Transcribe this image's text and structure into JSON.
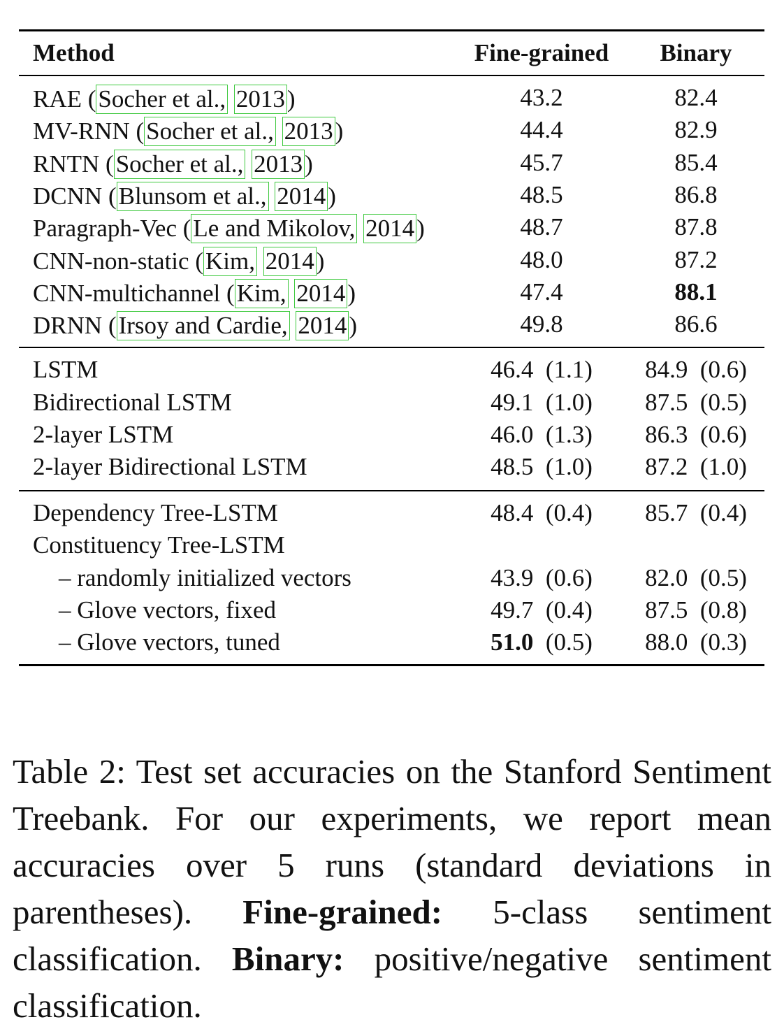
{
  "table": {
    "headers": {
      "method": "Method",
      "fine": "Fine-grained",
      "binary": "Binary"
    },
    "group1": [
      {
        "name": "RAE",
        "cite_author": "Socher et al.,",
        "cite_year": "2013",
        "fine": "43.2",
        "binary": "82.4"
      },
      {
        "name": "MV-RNN",
        "cite_author": "Socher et al.,",
        "cite_year": "2013",
        "fine": "44.4",
        "binary": "82.9"
      },
      {
        "name": "RNTN",
        "cite_author": "Socher et al.,",
        "cite_year": "2013",
        "fine": "45.7",
        "binary": "85.4"
      },
      {
        "name": "DCNN",
        "cite_author": "Blunsom et al.,",
        "cite_year": "2014",
        "fine": "48.5",
        "binary": "86.8"
      },
      {
        "name": "Paragraph-Vec",
        "cite_author": "Le and Mikolov,",
        "cite_year": "2014",
        "fine": "48.7",
        "binary": "87.8"
      },
      {
        "name": "CNN-non-static",
        "cite_author": "Kim,",
        "cite_year": "2014",
        "fine": "48.0",
        "binary": "87.2"
      },
      {
        "name": "CNN-multichannel",
        "cite_author": "Kim,",
        "cite_year": "2014",
        "fine": "47.4",
        "binary": "88.1"
      },
      {
        "name": "DRNN",
        "cite_author": "Irsoy and Cardie,",
        "cite_year": "2014",
        "fine": "49.8",
        "binary": "86.6"
      }
    ],
    "group2": [
      {
        "name": "LSTM",
        "fine": "46.4",
        "fine_sd": "(1.1)",
        "binary": "84.9",
        "binary_sd": "(0.6)"
      },
      {
        "name": "Bidirectional LSTM",
        "fine": "49.1",
        "fine_sd": "(1.0)",
        "binary": "87.5",
        "binary_sd": "(0.5)"
      },
      {
        "name": "2-layer LSTM",
        "fine": "46.0",
        "fine_sd": "(1.3)",
        "binary": "86.3",
        "binary_sd": "(0.6)"
      },
      {
        "name": "2-layer Bidirectional LSTM",
        "fine": "48.5",
        "fine_sd": "(1.0)",
        "binary": "87.2",
        "binary_sd": "(1.0)"
      }
    ],
    "group3": [
      {
        "name": "Dependency Tree-LSTM",
        "fine": "48.4",
        "fine_sd": "(0.4)",
        "binary": "85.7",
        "binary_sd": "(0.4)"
      },
      {
        "name": "Constituency Tree-LSTM"
      },
      {
        "name": "– randomly initialized vectors",
        "fine": "43.9",
        "fine_sd": "(0.6)",
        "binary": "82.0",
        "binary_sd": "(0.5)"
      },
      {
        "name": "– Glove vectors, fixed",
        "fine": "49.7",
        "fine_sd": "(0.4)",
        "binary": "87.5",
        "binary_sd": "(0.8)"
      },
      {
        "name": "– Glove vectors, tuned",
        "fine": "51.0",
        "fine_sd": "(0.5)",
        "binary": "88.0",
        "binary_sd": "(0.3)"
      }
    ]
  },
  "caption": {
    "part1": "Table 2: Test set accuracies on the Stanford Sentiment Treebank. For our experiments, we report mean accuracies over 5 runs (standard deviations in parentheses).",
    "bold1": "Fine-grained:",
    "part2": "5-class sentiment classification.",
    "bold2": "Binary:",
    "part3": "positive/negative sentiment classification."
  }
}
